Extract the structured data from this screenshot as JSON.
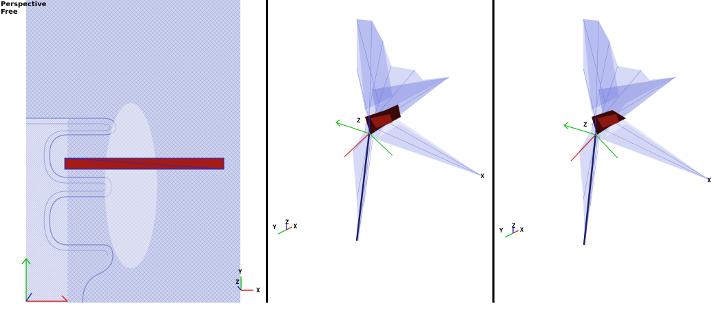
{
  "viewports": [
    {
      "name": "Perspective viewport",
      "mode_label": "Perspective",
      "submode_label": "Free",
      "triad": {
        "x": "X",
        "y": "Y",
        "z": "Z"
      }
    },
    {
      "name": "3D mesh viewport A",
      "triad": {
        "x": "X",
        "y": "Y",
        "z": "Z"
      },
      "origin_axis_label": "Z",
      "far_axis_label": "X"
    },
    {
      "name": "3D mesh viewport B",
      "triad": {
        "x": "X",
        "y": "Y",
        "z": "Z"
      },
      "origin_axis_label": "Z",
      "far_axis_label": "X"
    }
  ],
  "colors": {
    "mesh_fill": "#c9cfea",
    "mesh_line": "#6b74d6",
    "part_fill": "#a31b14",
    "x_axis": "#e0211a",
    "y_axis": "#1fc21f",
    "z_axis": "#1f2bd6",
    "divider": "#000000"
  }
}
